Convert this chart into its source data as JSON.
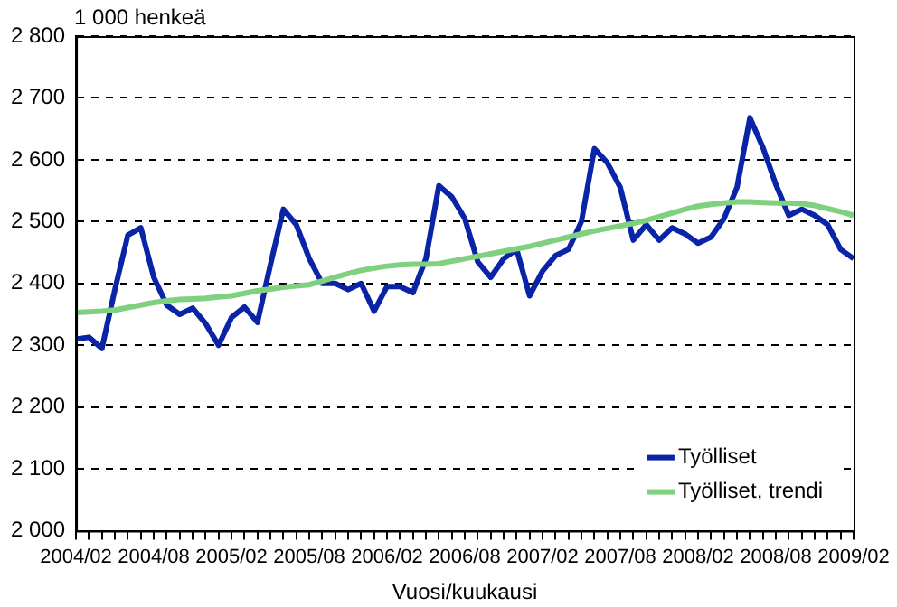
{
  "chart_data": {
    "type": "line",
    "ylabel": "1 000 henkeä",
    "xlabel": "Vuosi/kuukausi",
    "categories": [
      "2004/02",
      null,
      null,
      null,
      null,
      null,
      "2004/08",
      null,
      null,
      null,
      null,
      null,
      "2005/02",
      null,
      null,
      null,
      null,
      null,
      "2005/08",
      null,
      null,
      null,
      null,
      null,
      "2006/02",
      null,
      null,
      null,
      null,
      null,
      "2006/08",
      null,
      null,
      null,
      null,
      null,
      "2007/02",
      null,
      null,
      null,
      null,
      null,
      "2007/08",
      null,
      null,
      null,
      null,
      null,
      "2008/02",
      null,
      null,
      null,
      null,
      null,
      "2008/08",
      null,
      null,
      null,
      null,
      null,
      "2009/02"
    ],
    "series": [
      {
        "name": "Työlliset",
        "color": "#0a24a8",
        "values": [
          2310,
          2313,
          2295,
          2390,
          2478,
          2490,
          2410,
          2365,
          2350,
          2360,
          2335,
          2300,
          2345,
          2362,
          2337,
          2430,
          2520,
          2495,
          2440,
          2400,
          2400,
          2390,
          2400,
          2355,
          2395,
          2395,
          2385,
          2440,
          2558,
          2540,
          2505,
          2435,
          2410,
          2440,
          2455,
          2380,
          2420,
          2445,
          2455,
          2500,
          2618,
          2595,
          2555,
          2470,
          2495,
          2470,
          2490,
          2480,
          2465,
          2475,
          2505,
          2555,
          2668,
          2620,
          2560,
          2510,
          2520,
          2510,
          2495,
          2455,
          2440
        ]
      },
      {
        "name": "Työlliset, trendi",
        "color": "#7fd17f",
        "values": [
          2353,
          2354,
          2355,
          2357,
          2361,
          2365,
          2369,
          2372,
          2374,
          2375,
          2376,
          2378,
          2380,
          2384,
          2388,
          2391,
          2394,
          2396,
          2398,
          2404,
          2410,
          2416,
          2421,
          2425,
          2428,
          2430,
          2431,
          2431,
          2432,
          2436,
          2440,
          2444,
          2448,
          2452,
          2456,
          2460,
          2465,
          2470,
          2475,
          2480,
          2485,
          2489,
          2493,
          2497,
          2502,
          2508,
          2514,
          2520,
          2525,
          2528,
          2530,
          2532,
          2532,
          2531,
          2530,
          2530,
          2529,
          2526,
          2521,
          2516,
          2510
        ]
      }
    ],
    "ylim": [
      2000,
      2800
    ],
    "yticks": [
      {
        "value": 2000,
        "label": "2 000"
      },
      {
        "value": 2100,
        "label": "2 100"
      },
      {
        "value": 2200,
        "label": "2 200"
      },
      {
        "value": 2300,
        "label": "2 300"
      },
      {
        "value": 2400,
        "label": "2 400"
      },
      {
        "value": 2500,
        "label": "2 500"
      },
      {
        "value": 2600,
        "label": "2 600"
      },
      {
        "value": 2700,
        "label": "2 700"
      },
      {
        "value": 2800,
        "label": "2 800"
      }
    ],
    "grid": "y",
    "legend": "bottom right",
    "marker": "none",
    "line_style": "solid"
  }
}
